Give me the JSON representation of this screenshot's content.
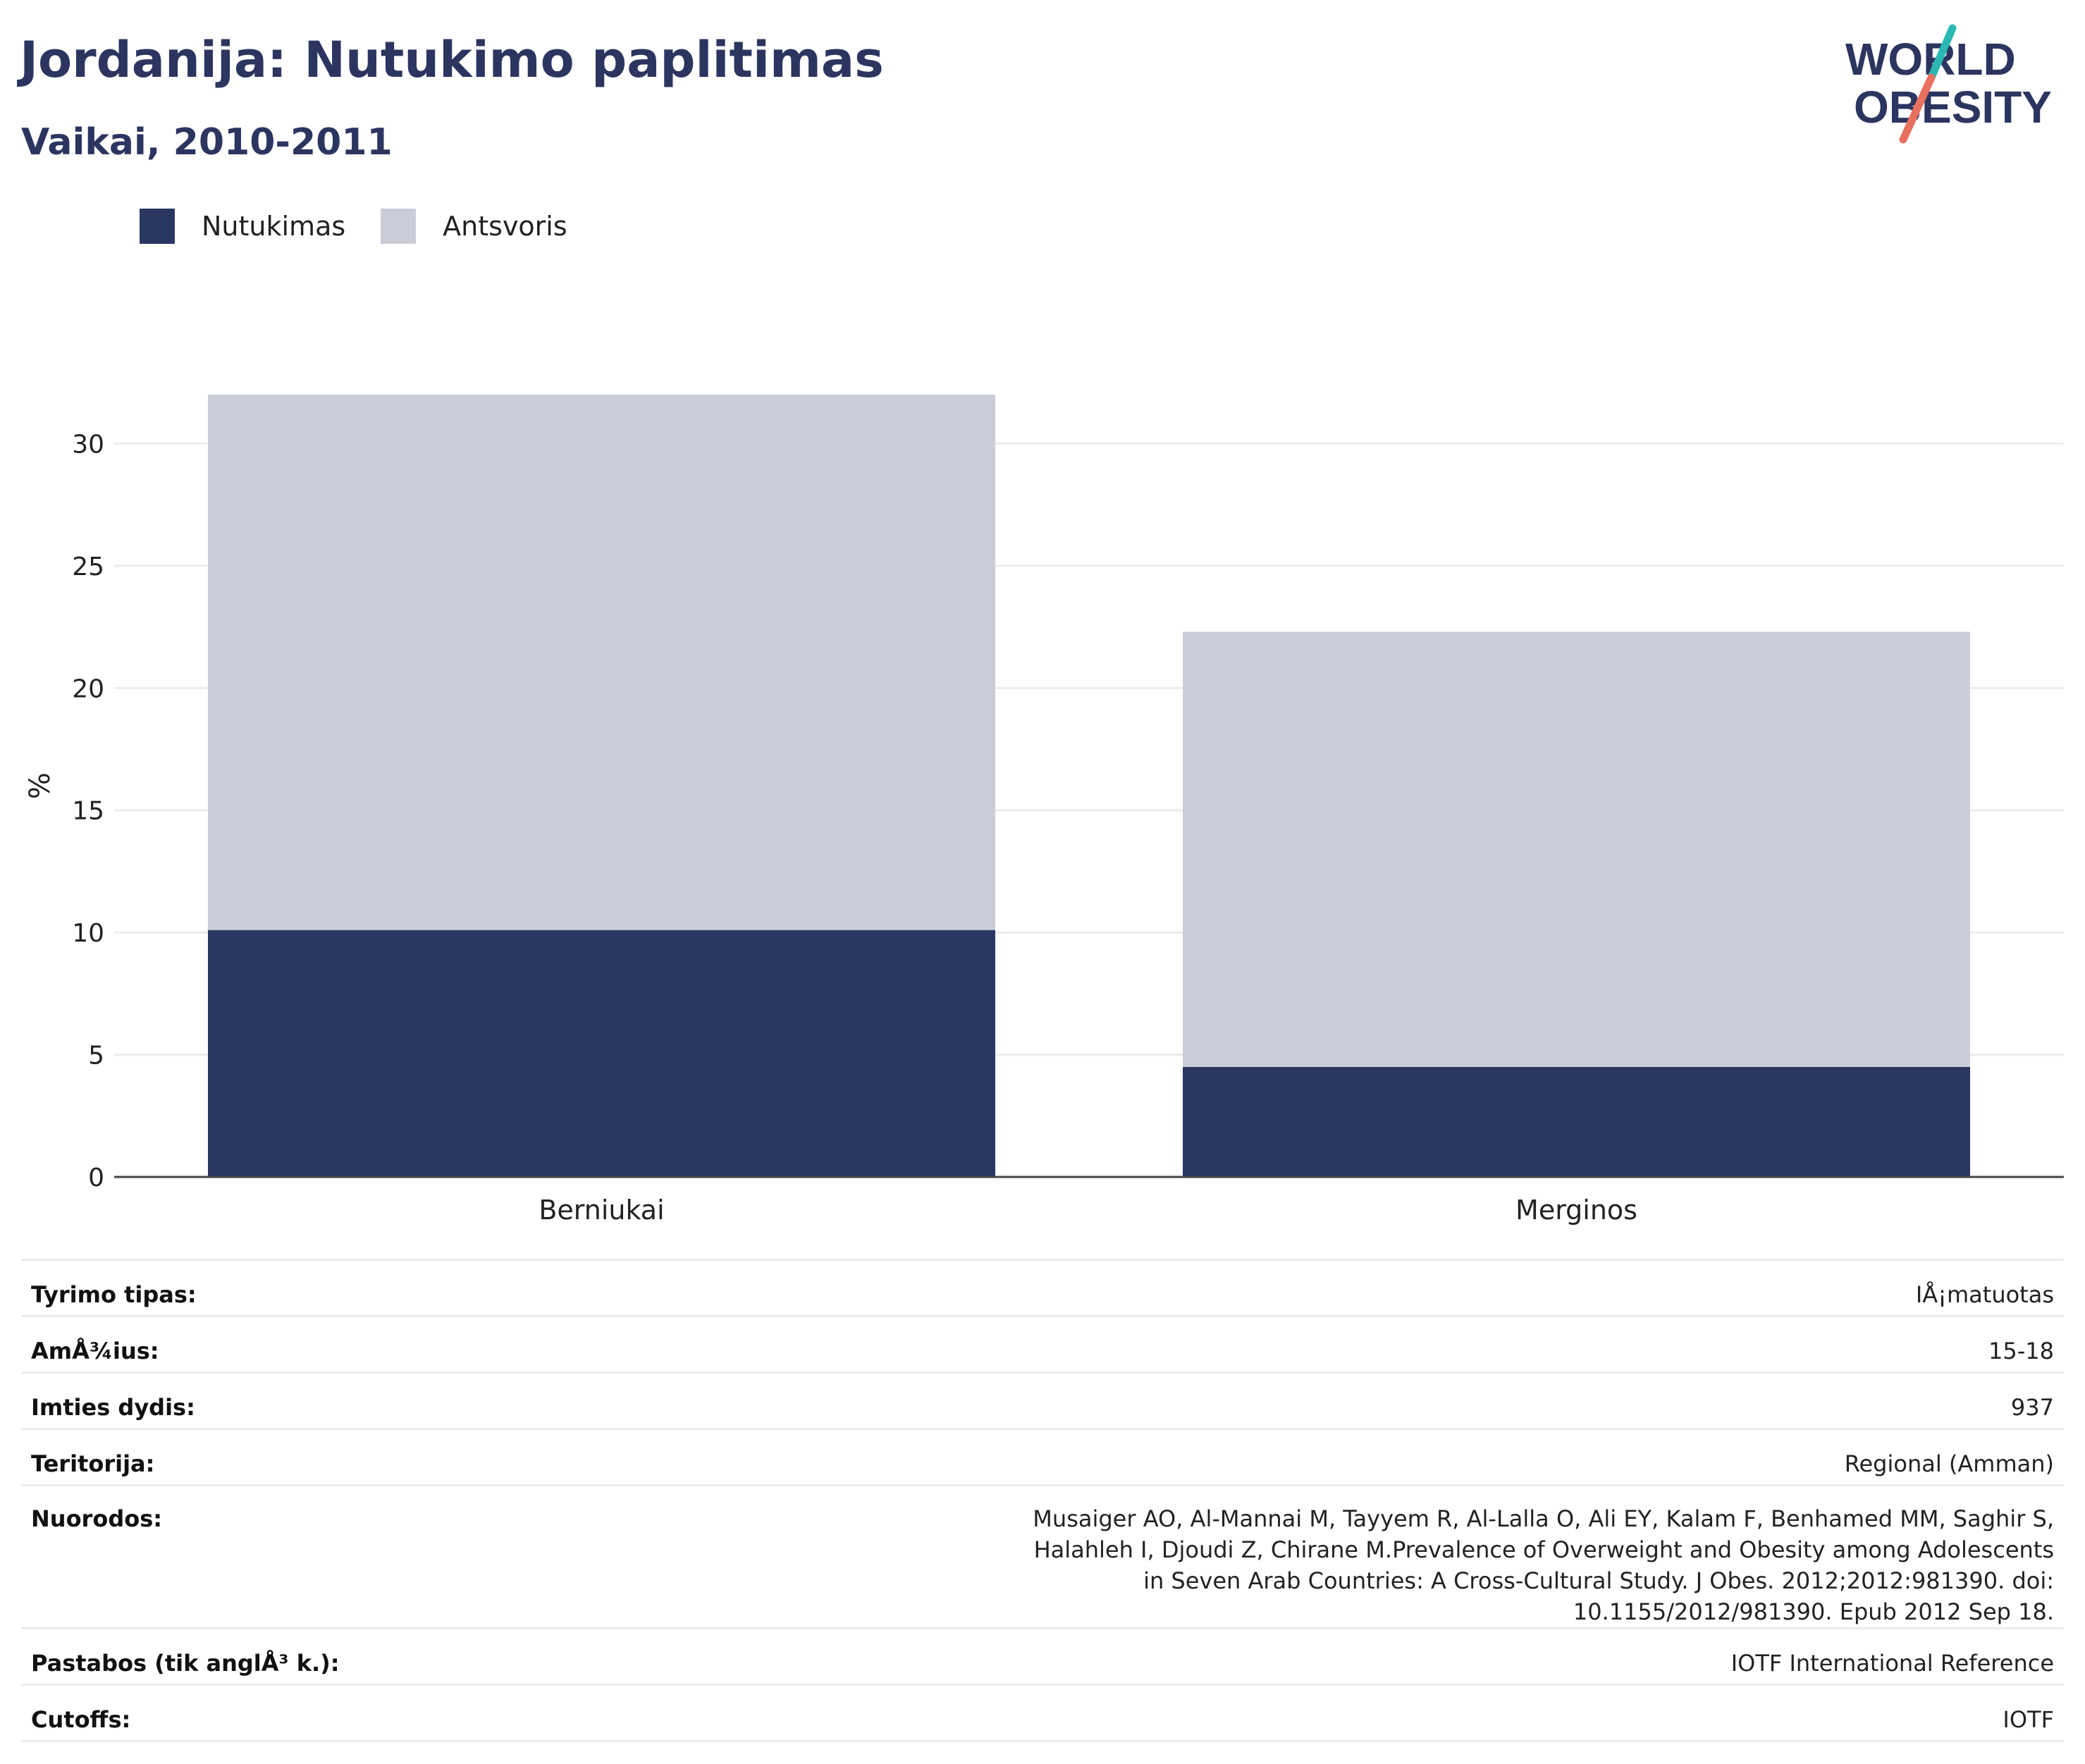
{
  "header": {
    "title": "Jordanija: Nutukimo paplitimas",
    "subtitle": "Vaikai, 2010-2011"
  },
  "logo": {
    "line1": "WORLD",
    "line2": "OBESITY",
    "accent_teal": "#2bb7b3",
    "accent_coral": "#e8705f",
    "text_color": "#2b3560"
  },
  "colors": {
    "obesity": "#2b3763",
    "overweight": "#cacdd8",
    "title": "#2b3560"
  },
  "legend": [
    {
      "label": "Nutukimas",
      "color": "#2b3763"
    },
    {
      "label": "Antsvoris",
      "color": "#cacdd8"
    }
  ],
  "chart_data": {
    "type": "bar",
    "stacked": true,
    "categories": [
      "Berniukai",
      "Merginos"
    ],
    "series": [
      {
        "name": "Nutukimas",
        "values": [
          10.1,
          4.5
        ]
      },
      {
        "name": "Antsvoris",
        "values": [
          21.9,
          17.8
        ]
      }
    ],
    "ylabel": "%",
    "ylim": [
      0,
      32
    ],
    "yticks": [
      0,
      5,
      10,
      15,
      20,
      25,
      30
    ],
    "grid": true,
    "legend_position": "top-left"
  },
  "info": [
    {
      "key": "Tyrimo tipas:",
      "value": "IÅ¡matuotas"
    },
    {
      "key": "AmÅ¾ius:",
      "value": "15-18"
    },
    {
      "key": "Imties dydis:",
      "value": "937"
    },
    {
      "key": "Teritorija:",
      "value": "Regional (Amman)"
    },
    {
      "key": "Nuorodos:",
      "value": "Musaiger AO, Al-Mannai M, Tayyem R, Al-Lalla O, Ali EY, Kalam F, Benhamed MM, Saghir S, Halahleh I, Djoudi Z, Chirane M.Prevalence of Overweight and Obesity among Adolescents in Seven Arab Countries: A Cross-Cultural Study. J Obes. 2012;2012:981390. doi: 10.1155/2012/981390. Epub 2012 Sep 18."
    },
    {
      "key": "Pastabos (tik anglÅ³ k.):",
      "value": "IOTF International Reference"
    },
    {
      "key": "Cutoffs:",
      "value": "IOTF"
    }
  ]
}
